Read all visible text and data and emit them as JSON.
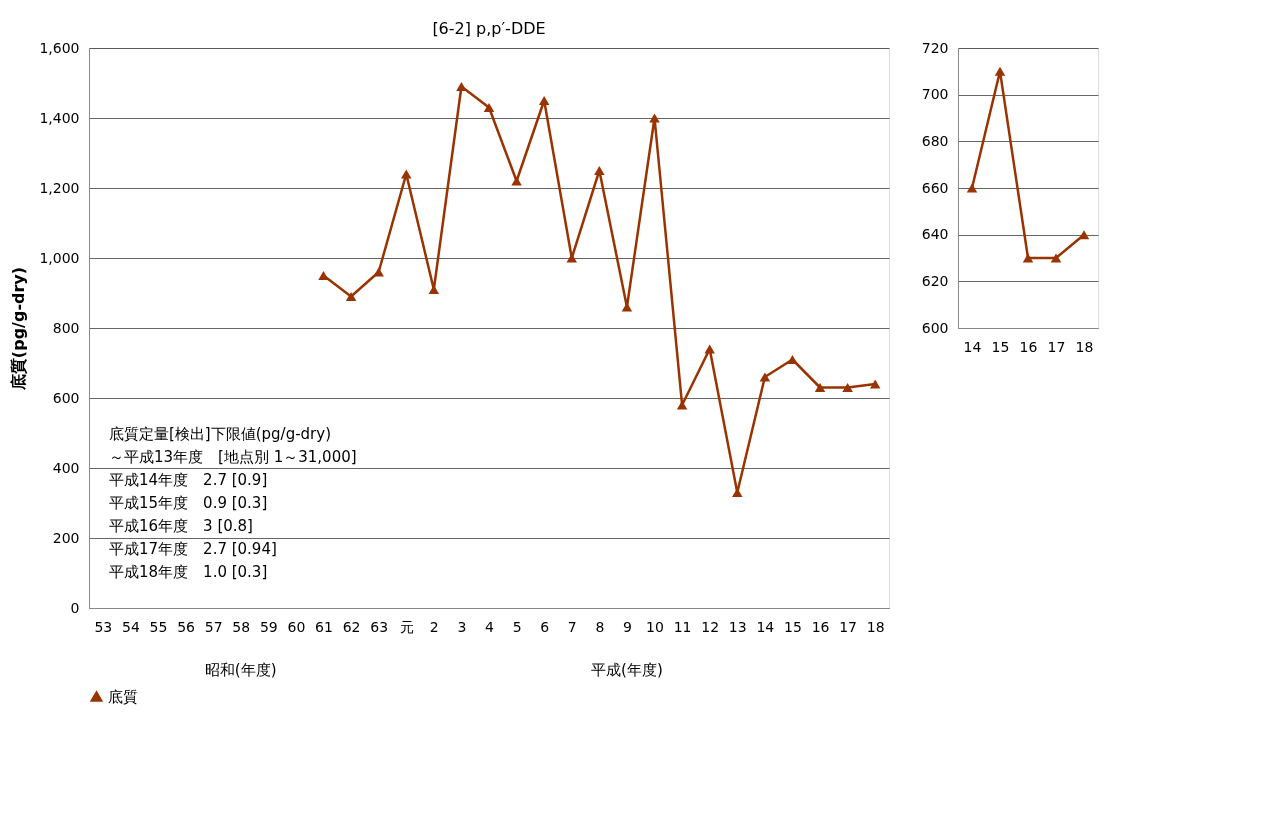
{
  "chart_data": [
    {
      "type": "line",
      "title": "[6-2] p,p′-DDE",
      "ylabel": "底質(pg/g-dry)",
      "categories": [
        "53",
        "54",
        "55",
        "56",
        "57",
        "58",
        "59",
        "60",
        "61",
        "62",
        "63",
        "元",
        "2",
        "3",
        "4",
        "5",
        "6",
        "7",
        "8",
        "9",
        "10",
        "11",
        "12",
        "13",
        "14",
        "15",
        "16",
        "17",
        "18"
      ],
      "series": [
        {
          "name": "底質",
          "color": "#993300",
          "values": [
            null,
            null,
            null,
            null,
            null,
            null,
            null,
            null,
            950,
            890,
            960,
            1240,
            910,
            1490,
            1430,
            1220,
            1450,
            1000,
            1250,
            860,
            1400,
            580,
            740,
            330,
            660,
            710,
            630,
            630,
            640
          ]
        }
      ],
      "ylim": [
        0,
        1600
      ],
      "yticks": [
        0,
        200,
        400,
        600,
        800,
        {
          "value": 1000,
          "label": "1,000"
        },
        {
          "value": 1200,
          "label": "1,200"
        },
        {
          "value": 1400,
          "label": "1,400"
        },
        {
          "value": 1600,
          "label": "1,600"
        }
      ],
      "grid": "y",
      "legend": "bottom",
      "marker": "triangle",
      "line_style": "solid",
      "annotations": [
        "昭和(年度)",
        "平成(年度)",
        "底質定量[検出]下限値(pg/g-dry)",
        "～平成13年度　[地点別 1～31,000]",
        "　平成14年度　2.7 [0.9]",
        "　平成15年度　0.9 [0.3]",
        "　平成16年度　3 [0.8]",
        "　平成17年度　2.7 [0.94]",
        "　平成18年度　1.0 [0.3]"
      ]
    },
    {
      "type": "line",
      "categories": [
        "14",
        "15",
        "16",
        "17",
        "18"
      ],
      "series": [
        {
          "color": "#993300",
          "values": [
            660,
            710,
            630,
            630,
            640
          ]
        }
      ],
      "ylim": [
        600,
        720
      ],
      "yticks": [
        600,
        620,
        640,
        660,
        680,
        700,
        720
      ],
      "grid": "y",
      "marker": "triangle",
      "line_style": "solid"
    }
  ]
}
